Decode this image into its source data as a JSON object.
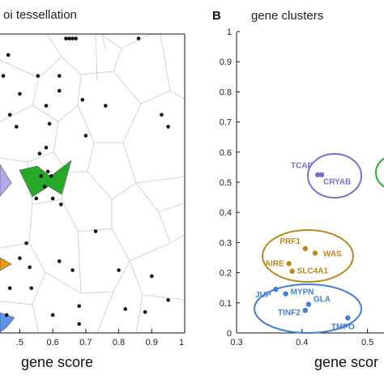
{
  "chart_data": [
    {
      "type": "scatter",
      "title": "oi tessellation",
      "xlabel": "gene score",
      "x_ticks": [
        ".5",
        "0.6",
        "0.7",
        "0.8",
        "0.9",
        "1"
      ],
      "xlim": [
        0.44,
        1.0
      ],
      "ylim": [
        0.0,
        1.0
      ],
      "note_visible_partial_left": true,
      "points": [
        {
          "x": 0.45,
          "y": 0.86
        },
        {
          "x": 0.465,
          "y": 0.93
        },
        {
          "x": 0.47,
          "y": 0.73
        },
        {
          "x": 0.49,
          "y": 0.69
        },
        {
          "x": 0.5,
          "y": 0.8
        },
        {
          "x": 0.555,
          "y": 0.86
        },
        {
          "x": 0.58,
          "y": 0.76
        },
        {
          "x": 0.58,
          "y": 0.62
        },
        {
          "x": 0.585,
          "y": 0.54
        },
        {
          "x": 0.575,
          "y": 0.49
        },
        {
          "x": 0.56,
          "y": 0.6
        },
        {
          "x": 0.59,
          "y": 0.7
        },
        {
          "x": 0.62,
          "y": 0.86
        },
        {
          "x": 0.62,
          "y": 0.81
        },
        {
          "x": 0.69,
          "y": 0.78
        },
        {
          "x": 0.55,
          "y": 0.45
        },
        {
          "x": 0.6,
          "y": 0.45
        },
        {
          "x": 0.625,
          "y": 0.43
        },
        {
          "x": 0.7,
          "y": 0.66
        },
        {
          "x": 0.76,
          "y": 0.76
        },
        {
          "x": 0.93,
          "y": 0.73
        },
        {
          "x": 0.95,
          "y": 0.69
        },
        {
          "x": 0.73,
          "y": 0.34
        },
        {
          "x": 0.66,
          "y": 0.21
        },
        {
          "x": 0.62,
          "y": 0.24
        },
        {
          "x": 0.52,
          "y": 0.3
        },
        {
          "x": 0.5,
          "y": 0.25
        },
        {
          "x": 0.53,
          "y": 0.22
        },
        {
          "x": 0.535,
          "y": 0.15
        },
        {
          "x": 0.47,
          "y": 0.15
        },
        {
          "x": 0.46,
          "y": 0.06
        },
        {
          "x": 0.6,
          "y": 0.06
        },
        {
          "x": 0.68,
          "y": 0.03
        },
        {
          "x": 0.8,
          "y": 0.21
        },
        {
          "x": 0.82,
          "y": 0.08
        },
        {
          "x": 0.88,
          "y": 0.07
        },
        {
          "x": 0.9,
          "y": 0.19
        },
        {
          "x": 0.95,
          "y": 0.11
        },
        {
          "x": 0.68,
          "y": 0.09
        },
        {
          "x": 0.65,
          "y": 0.985
        },
        {
          "x": 0.66,
          "y": 0.985
        },
        {
          "x": 0.67,
          "y": 0.985
        },
        {
          "x": 0.64,
          "y": 0.985
        },
        {
          "x": 0.86,
          "y": 0.985
        }
      ],
      "highlighted_cells": [
        {
          "color": "#1fa81f",
          "points": [
            {
              "x": 0.565,
              "y": 0.525
            },
            {
              "x": 0.595,
              "y": 0.525
            }
          ]
        },
        {
          "color": "#a59ae8"
        },
        {
          "color": "#e28d12"
        },
        {
          "color": "#4f8de8"
        }
      ]
    },
    {
      "type": "scatter",
      "panel_label": "B",
      "title": "gene clusters",
      "xlabel": "gene scor",
      "x_ticks": [
        "0.3",
        "0.4",
        "0.5"
      ],
      "y_ticks": [
        "0",
        "0.1",
        "0.2",
        "0.3",
        "0.4",
        "0.5",
        "0.6",
        "0.7",
        "0.8",
        "0.9",
        "1"
      ],
      "xlim": [
        0.3,
        0.55
      ],
      "ylim": [
        0.0,
        1.0
      ],
      "clusters": [
        {
          "color": "#7a6fcf",
          "genes": [
            {
              "name": "TCAP",
              "x": 0.424,
              "y": 0.525
            },
            {
              "name": "CRYAB",
              "x": 0.43,
              "y": 0.525
            }
          ]
        },
        {
          "color": "#b88a1c",
          "genes": [
            {
              "name": "PRF1",
              "x": 0.405,
              "y": 0.28
            },
            {
              "name": "WAS",
              "x": 0.42,
              "y": 0.265
            },
            {
              "name": "AIRE",
              "x": 0.38,
              "y": 0.23
            },
            {
              "name": "SLC4A1",
              "x": 0.385,
              "y": 0.205
            }
          ]
        },
        {
          "color": "#3f7fd8",
          "genes": [
            {
              "name": "JUP",
              "x": 0.36,
              "y": 0.145
            },
            {
              "name": "MYPN",
              "x": 0.375,
              "y": 0.13
            },
            {
              "name": "GLA",
              "x": 0.41,
              "y": 0.095
            },
            {
              "name": "TINF2",
              "x": 0.405,
              "y": 0.075
            },
            {
              "name": "TMPO",
              "x": 0.47,
              "y": 0.05
            }
          ]
        },
        {
          "color": "#2fa82f",
          "genes": []
        }
      ]
    }
  ]
}
